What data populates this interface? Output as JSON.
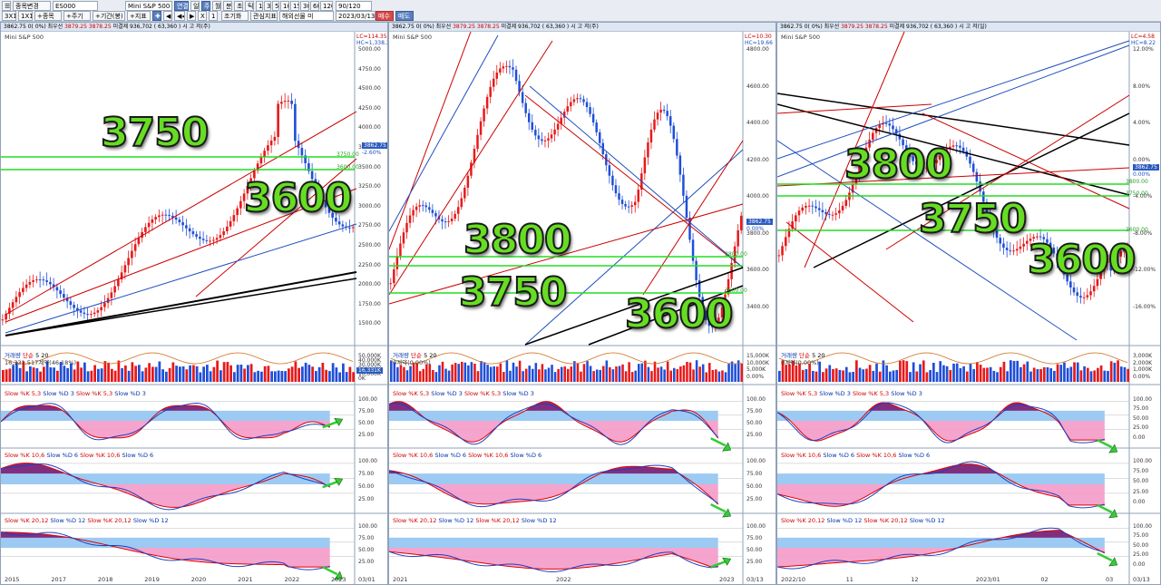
{
  "toolbar": {
    "items": [
      "☰",
      "종목변경",
      "ES000",
      "Mini S&P 500",
      "연결",
      "일",
      "주",
      "월",
      "분",
      "초",
      "틱",
      "1",
      "3",
      "5",
      "10",
      "15",
      "30",
      "60",
      "120",
      "조기화",
      "관심지표",
      "해외선물 미",
      "2023/03/13",
      "90/120",
      "매수",
      "매도",
      "3X1",
      "1X1",
      "+종목",
      "+주기",
      "+기간(봉)",
      "+지표",
      "✚",
      "◀",
      "◀◀",
      "▶",
      "X",
      "1"
    ]
  },
  "panels": [
    {
      "head": {
        "price": "3862.75",
        "zero": "0(",
        "pct": "0%)",
        "ask_label": "최우선",
        "ask": "3879.25",
        "bid": "3878.25",
        "oi_label": "미결제",
        "oi": "936,702",
        "oi_chg": "( 63,360 )",
        "unit": "시",
        "high": "고",
        "low": "저(주)"
      },
      "name": "Mini S&P 500",
      "hilo": [
        "LC=114.35",
        "HC=1,338.25"
      ],
      "yaxis": [
        "5000.00",
        "4750.00",
        "4500.00",
        "4250.00",
        "4000.00",
        "3750.00",
        "3500.00",
        "3250.00",
        "3000.00",
        "2750.00",
        "2500.00",
        "2250.00",
        "2000.00",
        "1750.00",
        "1500.00"
      ],
      "price_tag": "3862.75",
      "pct_tag": "-2.60%",
      "green_labels": [
        "3750.00",
        "3600.00"
      ],
      "big": [
        "3750",
        "3600"
      ],
      "vol": {
        "label": "거래량",
        "type": "단순",
        "n1": "5",
        "n2": "20",
        "stat": "16,331,517계약(46.18%)",
        "axis": [
          "50,000K",
          "40,000K",
          "30,000K",
          "20,000K",
          "10,000K",
          "0K"
        ],
        "tag": "16,331K"
      },
      "st": [
        {
          "k": "Slow %K 5,3",
          "d": "Slow %D 3",
          "k2": "Slow %K 5,3",
          "d2": "Slow %D 3"
        },
        {
          "k": "Slow %K 10,6",
          "d": "Slow %D 6",
          "k2": "Slow %K 10,6",
          "d2": "Slow %D 6"
        },
        {
          "k": "Slow %K 20,12",
          "d": "Slow %D 12",
          "k2": "Slow %K 20,12",
          "d2": "Slow %D 12"
        }
      ],
      "st_axis": [
        "100.00",
        "75.00",
        "50.00",
        "25.00"
      ],
      "dates": [
        "2015",
        "2017",
        "2018",
        "2019",
        "2020",
        "2021",
        "2022",
        "2023",
        "03/01"
      ]
    },
    {
      "head": {
        "price": "3862.75",
        "zero": "0(",
        "pct": "0%)",
        "ask_label": "최우선",
        "ask": "3879.25",
        "bid": "3878.25",
        "oi_label": "미결제",
        "oi": "936,702",
        "oi_chg": "( 63,360 )",
        "unit": "시",
        "high": "고",
        "low": "저(주)"
      },
      "name": "Mini S&P 500",
      "hilo": [
        "LC=10.30",
        "HC=19.66"
      ],
      "yaxis": [
        "4800.00",
        "4600.00",
        "4400.00",
        "4200.00",
        "4000.00",
        "3800.00",
        "3600.00",
        "3400.00"
      ],
      "price_tag": "3862.75",
      "pct_tag": "0.00%",
      "green_labels": [
        "3800.00",
        "3600.00"
      ],
      "big": [
        "3800",
        "3750",
        "3600"
      ],
      "vol": {
        "label": "거래량",
        "type": "단순",
        "n1": "5",
        "n2": "20",
        "stat": "0계약(0.00%)",
        "axis": [
          "15,000K",
          "10,000K",
          "5,000K",
          "0.00%"
        ],
        "tag": ""
      },
      "st": [
        {
          "k": "Slow %K 5,3",
          "d": "Slow %D 3",
          "k2": "Slow %K 5,3",
          "d2": "Slow %D 3"
        },
        {
          "k": "Slow %K 10,6",
          "d": "Slow %D 6",
          "k2": "Slow %K 10,6",
          "d2": "Slow %D 6"
        },
        {
          "k": "Slow %K 20,12",
          "d": "Slow %D 12",
          "k2": "Slow %K 20,12",
          "d2": "Slow %D 12"
        }
      ],
      "st_axis": [
        "100.00",
        "75.00",
        "50.00",
        "25.00"
      ],
      "dates": [
        "2021",
        "2022",
        "2023",
        "03/13"
      ]
    },
    {
      "head": {
        "price": "3862.75",
        "zero": "0(",
        "pct": "0%)",
        "ask_label": "최우선",
        "ask": "3879.25",
        "bid": "3878.25",
        "oi_label": "미결제",
        "oi": "936,702",
        "oi_chg": "( 63,360 )",
        "unit": "시",
        "high": "고",
        "low": "저(일)"
      },
      "name": "Mini S&P 500",
      "hilo": [
        "LC=4.58",
        "HC=8.22"
      ],
      "yaxis": [
        "12.00%",
        "8.00%",
        "4.00%",
        "0.00%",
        "-4.00%",
        "-8.00%",
        "-12.00%",
        "-16.00%"
      ],
      "price_tag": "3862.75",
      "pct_tag": "0.00%",
      "green_labels": [
        "3800.00",
        "3750.00",
        "3600.00"
      ],
      "big": [
        "3800",
        "3750",
        "3600"
      ],
      "vol": {
        "label": "거래량",
        "type": "단순",
        "n1": "5",
        "n2": "20",
        "stat": "0계약(0.00%)",
        "axis": [
          "3,000K",
          "2,000K",
          "1,000K",
          "0.00%"
        ],
        "tag": ""
      },
      "st": [
        {
          "k": "Slow %K 5,3",
          "d": "Slow %D 3",
          "k2": "Slow %K 5,3",
          "d2": "Slow %D 3"
        },
        {
          "k": "Slow %K 10,6",
          "d": "Slow %D 6",
          "k2": "Slow %K 10,6",
          "d2": "Slow %D 6"
        },
        {
          "k": "Slow %K 20,12",
          "d": "Slow %D 12",
          "k2": "Slow %K 20,12",
          "d2": "Slow %D 12"
        }
      ],
      "st_axis": [
        "100.00",
        "75.00",
        "50.00",
        "25.00",
        "0.00"
      ],
      "dates": [
        "2022/10",
        "11",
        "12",
        "2023/01",
        "02",
        "03",
        "03/13"
      ]
    }
  ],
  "colors": {
    "up": "#e8191a",
    "down": "#1f4fd8",
    "green": "#22dd22",
    "purple": "#6a0a6a",
    "blue_fill": "#9ccaf2",
    "pink_fill": "#f49ac8",
    "arrow": "#33cc33"
  }
}
